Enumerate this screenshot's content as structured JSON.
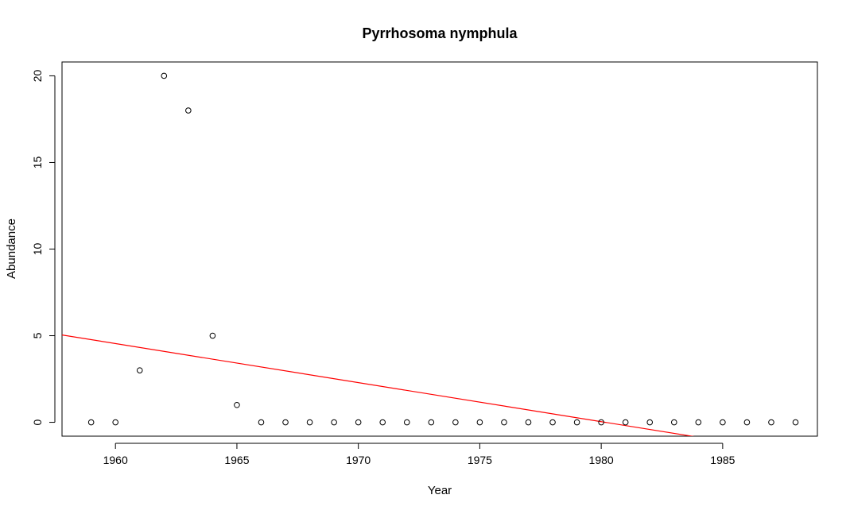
{
  "chart_data": {
    "type": "scatter",
    "title": "Pyrrhosoma nymphula",
    "xlabel": "Year",
    "ylabel": "Abundance",
    "xlim": [
      1957.8,
      1988.9
    ],
    "ylim": [
      -0.8,
      20.8
    ],
    "x_ticks": [
      1960,
      1965,
      1970,
      1975,
      1980,
      1985
    ],
    "y_ticks": [
      0,
      5,
      10,
      15,
      20
    ],
    "grid": false,
    "legend": "none",
    "point_style": "open-circle",
    "series": [
      {
        "x": [
          1959,
          1960,
          1961,
          1962,
          1963,
          1964,
          1965,
          1966,
          1967,
          1968,
          1969,
          1970,
          1971,
          1972,
          1973,
          1974,
          1975,
          1976,
          1977,
          1978,
          1979,
          1980,
          1981,
          1982,
          1983,
          1984,
          1985,
          1986,
          1987,
          1988
        ],
        "y": [
          0,
          0,
          3,
          20,
          18,
          5,
          1,
          0,
          0,
          0,
          0,
          0,
          0,
          0,
          0,
          0,
          0,
          0,
          0,
          0,
          0,
          0,
          0,
          0,
          0,
          0,
          0,
          0,
          0,
          0
        ]
      }
    ],
    "trend_line": {
      "color": "#ff0000",
      "slope": -0.2254,
      "intercept": 446.33
    }
  }
}
